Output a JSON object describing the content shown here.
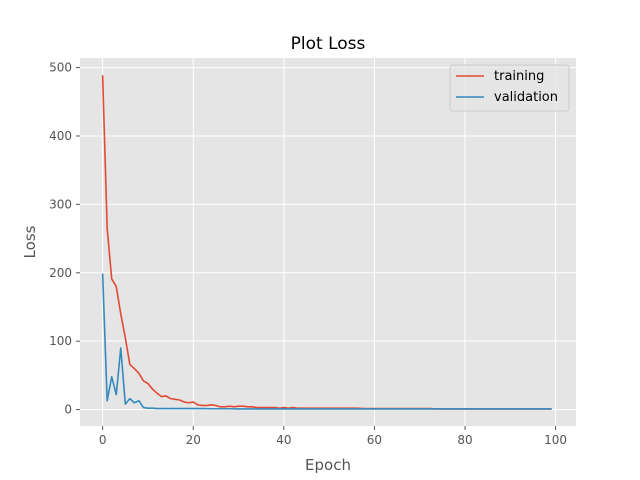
{
  "chart_data": {
    "type": "line",
    "title": "Plot Loss",
    "xlabel": "Epoch",
    "ylabel": "Loss",
    "xlim": [
      -5,
      104.5
    ],
    "ylim": [
      -24,
      514
    ],
    "xticks": [
      0,
      20,
      40,
      60,
      80,
      100
    ],
    "yticks": [
      0,
      100,
      200,
      300,
      400,
      500
    ],
    "xtick_labels": [
      "0",
      "20",
      "40",
      "60",
      "80",
      "100"
    ],
    "ytick_labels": [
      "0",
      "100",
      "200",
      "300",
      "400",
      "500"
    ],
    "grid": true,
    "legend_position": "top-right",
    "series": [
      {
        "name": "training",
        "color": "#E24A33",
        "x": [
          0,
          1,
          2,
          3,
          4,
          5,
          6,
          7,
          8,
          9,
          10,
          11,
          12,
          13,
          14,
          15,
          16,
          17,
          18,
          19,
          20,
          21,
          22,
          23,
          24,
          25,
          26,
          27,
          28,
          29,
          30,
          31,
          32,
          33,
          34,
          35,
          36,
          37,
          38,
          39,
          40,
          41,
          42,
          43,
          44,
          45,
          46,
          47,
          48,
          49,
          50,
          52,
          54,
          56,
          58,
          60,
          62,
          64,
          66,
          68,
          70,
          72,
          74,
          76,
          78,
          80,
          82,
          84,
          86,
          88,
          90,
          92,
          94,
          96,
          98,
          99
        ],
        "y": [
          488,
          265,
          191,
          180,
          140,
          105,
          66,
          60,
          53,
          42,
          38,
          30,
          24,
          19,
          20,
          16,
          15,
          14,
          11,
          10,
          11,
          7,
          6,
          6,
          7,
          6,
          4,
          4,
          5,
          4,
          5,
          5,
          4,
          4,
          3,
          3,
          3,
          3,
          3,
          2,
          3,
          2,
          3,
          2,
          2,
          2,
          2,
          2,
          2,
          2,
          2,
          2,
          2,
          2,
          1.5,
          1.5,
          1.5,
          1.5,
          1.5,
          1.5,
          1.5,
          1.5,
          1,
          1,
          1,
          1,
          1,
          1,
          1,
          1,
          1,
          1,
          1,
          1,
          1,
          1
        ]
      },
      {
        "name": "validation",
        "color": "#348ABD",
        "x": [
          0,
          1,
          2,
          3,
          4,
          5,
          6,
          7,
          8,
          9,
          10,
          11,
          12,
          13,
          14,
          15,
          16,
          17,
          18,
          19,
          20,
          22,
          24,
          26,
          28,
          30,
          35,
          40,
          45,
          50,
          55,
          60,
          65,
          70,
          75,
          80,
          85,
          90,
          95,
          99
        ],
        "y": [
          198,
          13,
          48,
          22,
          90,
          8,
          16,
          10,
          13,
          3,
          2,
          2,
          1.5,
          1.5,
          1.5,
          1.5,
          1.5,
          1.5,
          1.5,
          1.5,
          1.5,
          1.5,
          1.2,
          1.2,
          1.2,
          1,
          1,
          1,
          1,
          1,
          1,
          1,
          1,
          1,
          1,
          1,
          1,
          1,
          1,
          1
        ]
      }
    ]
  }
}
